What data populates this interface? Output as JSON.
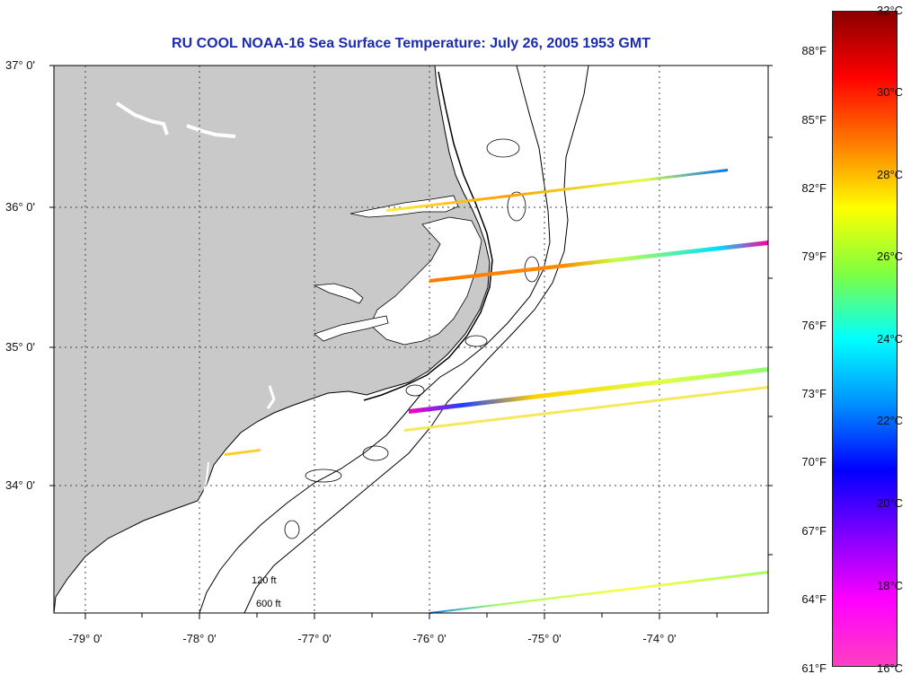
{
  "title": "RU COOL  NOAA-16  Sea Surface Temperature:  July 26, 2005 1953 GMT",
  "latitude_labels": [
    "37° 0'",
    "36° 0'",
    "35° 0'",
    "34° 0'"
  ],
  "longitude_labels": [
    "-79° 0'",
    "-78° 0'",
    "-77° 0'",
    "-76° 0'",
    "-75° 0'",
    "-74° 0'"
  ],
  "contour_labels": {
    "c120": "120 ft",
    "c600": "600 ft"
  },
  "colorbar": {
    "celsius_labels": [
      "32°C",
      "30°C",
      "28°C",
      "26°C",
      "24°C",
      "22°C",
      "20°C",
      "18°C",
      "16°C"
    ],
    "fahrenheit_labels": [
      "88°F",
      "85°F",
      "82°F",
      "79°F",
      "76°F",
      "73°F",
      "70°F",
      "67°F",
      "64°F",
      "61°F"
    ],
    "gradient_stops": [
      "#8b0000",
      "#ff0000",
      "#ff7a00",
      "#ffff00",
      "#7fff40",
      "#00ffff",
      "#0090ff",
      "#0000ff",
      "#8000ff",
      "#ff00ff",
      "#ff40c0"
    ]
  },
  "colors": {
    "land": "#c9c9c9",
    "title": "#1a2bb0",
    "grid": "#444444"
  }
}
